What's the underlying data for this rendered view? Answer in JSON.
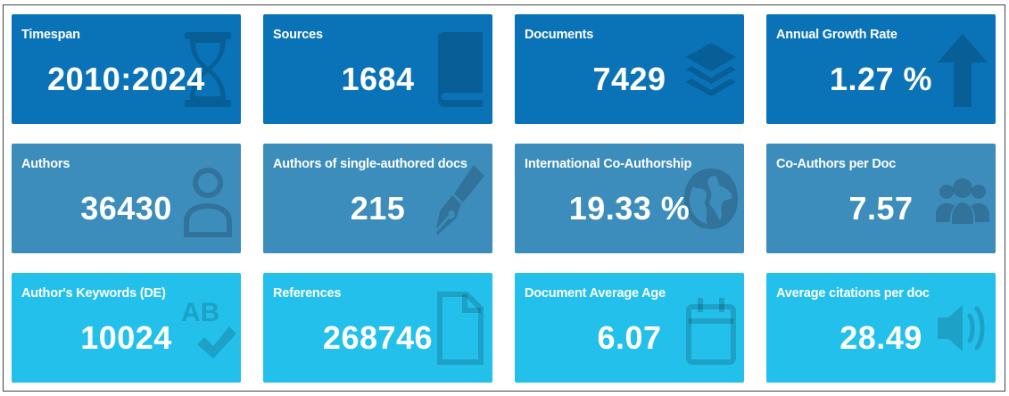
{
  "boxes": [
    {
      "label": "Timespan",
      "value": "2010:2024",
      "icon": "hourglass-icon"
    },
    {
      "label": "Sources",
      "value": "1684",
      "icon": "book-icon"
    },
    {
      "label": "Documents",
      "value": "7429",
      "icon": "layers-icon"
    },
    {
      "label": "Annual Growth Rate",
      "value": "1.27 %",
      "icon": "arrow-up-icon"
    },
    {
      "label": "Authors",
      "value": "36430",
      "icon": "user-icon"
    },
    {
      "label": "Authors of single-authored docs",
      "value": "215",
      "icon": "pen-nib-icon"
    },
    {
      "label": "International Co-Authorship",
      "value": "19.33 %",
      "icon": "globe-icon"
    },
    {
      "label": "Co-Authors per Doc",
      "value": "7.57",
      "icon": "users-icon"
    },
    {
      "label": "Author's Keywords (DE)",
      "value": "10024",
      "icon": "spell-check-icon",
      "icon_text": "AB"
    },
    {
      "label": "References",
      "value": "268746",
      "icon": "file-icon"
    },
    {
      "label": "Document Average Age",
      "value": "6.07",
      "icon": "calendar-icon"
    },
    {
      "label": "Average citations per doc",
      "value": "28.49",
      "icon": "volume-icon"
    }
  ],
  "colors": {
    "row_1": "#0a73b7",
    "row_2": "#3c8dbc",
    "row_3": "#23c0ec",
    "text": "#ffffff"
  }
}
